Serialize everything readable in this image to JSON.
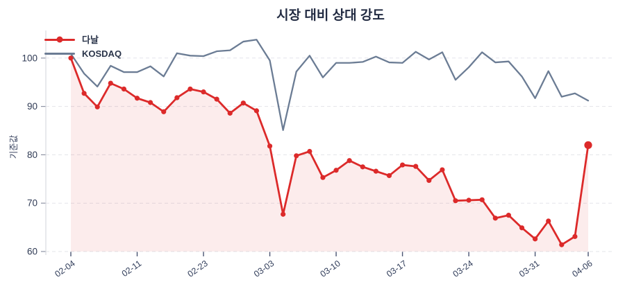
{
  "title": "시장 대비 상대 강도",
  "y_axis_label": "기준값",
  "legend": {
    "items": [
      "다날",
      "KOSDAQ"
    ],
    "position": "top-left"
  },
  "colors": {
    "danal_line": "#dc2a2a",
    "danal_fill": "rgba(218,40,42,0.09)",
    "kosdaq_line": "#6b7c94",
    "grid": "#e3e4ea",
    "title_text": "#222b42",
    "axis_text": "#2f3a54",
    "background": "#ffffff"
  },
  "chart_data": {
    "type": "line",
    "title": "시장 대비 상대 강도",
    "xlabel": "",
    "ylabel": "기준값",
    "ylim": [
      60,
      105
    ],
    "y_ticks": [
      60,
      70,
      80,
      90,
      100
    ],
    "grid": "horizontal-dashed",
    "legend_position": "top-left",
    "n_points": 40,
    "x_tick_indices": [
      0,
      5,
      10,
      15,
      20,
      25,
      30,
      35,
      39
    ],
    "x_tick_labels": [
      "02-04",
      "02-11",
      "02-23",
      "03-03",
      "03-10",
      "03-17",
      "03-24",
      "03-31",
      "04-06"
    ],
    "series": [
      {
        "name": "다날",
        "style": "line+markers+area",
        "color": "#dc2a2a",
        "fill": "rgba(218,40,42,0.09)",
        "last_point_emphasis": true,
        "values": [
          100,
          92.7,
          89.9,
          94.8,
          93.6,
          91.7,
          90.8,
          88.9,
          91.8,
          93.6,
          93.0,
          91.5,
          88.6,
          90.7,
          89.1,
          81.8,
          67.7,
          79.8,
          80.7,
          75.3,
          76.8,
          78.8,
          77.5,
          76.6,
          75.7,
          77.9,
          77.6,
          74.7,
          76.9,
          70.5,
          70.6,
          70.7,
          66.9,
          67.5,
          64.9,
          62.6,
          66.3,
          61.4,
          63.1,
          82.0
        ]
      },
      {
        "name": "KOSDAQ",
        "style": "line",
        "color": "#6b7c94",
        "values": [
          100.9,
          96.8,
          94.1,
          98.4,
          97.1,
          97.1,
          98.3,
          96.2,
          101.0,
          100.5,
          100.4,
          101.4,
          101.6,
          103.4,
          103.8,
          99.5,
          85.1,
          97.2,
          100.5,
          96.0,
          99.0,
          99.0,
          99.2,
          100.3,
          99.1,
          99.0,
          101.3,
          99.7,
          101.2,
          95.5,
          98.1,
          101.2,
          99.1,
          99.3,
          96.2,
          91.7,
          97.3,
          92.0,
          92.7,
          91.2
        ]
      }
    ]
  }
}
